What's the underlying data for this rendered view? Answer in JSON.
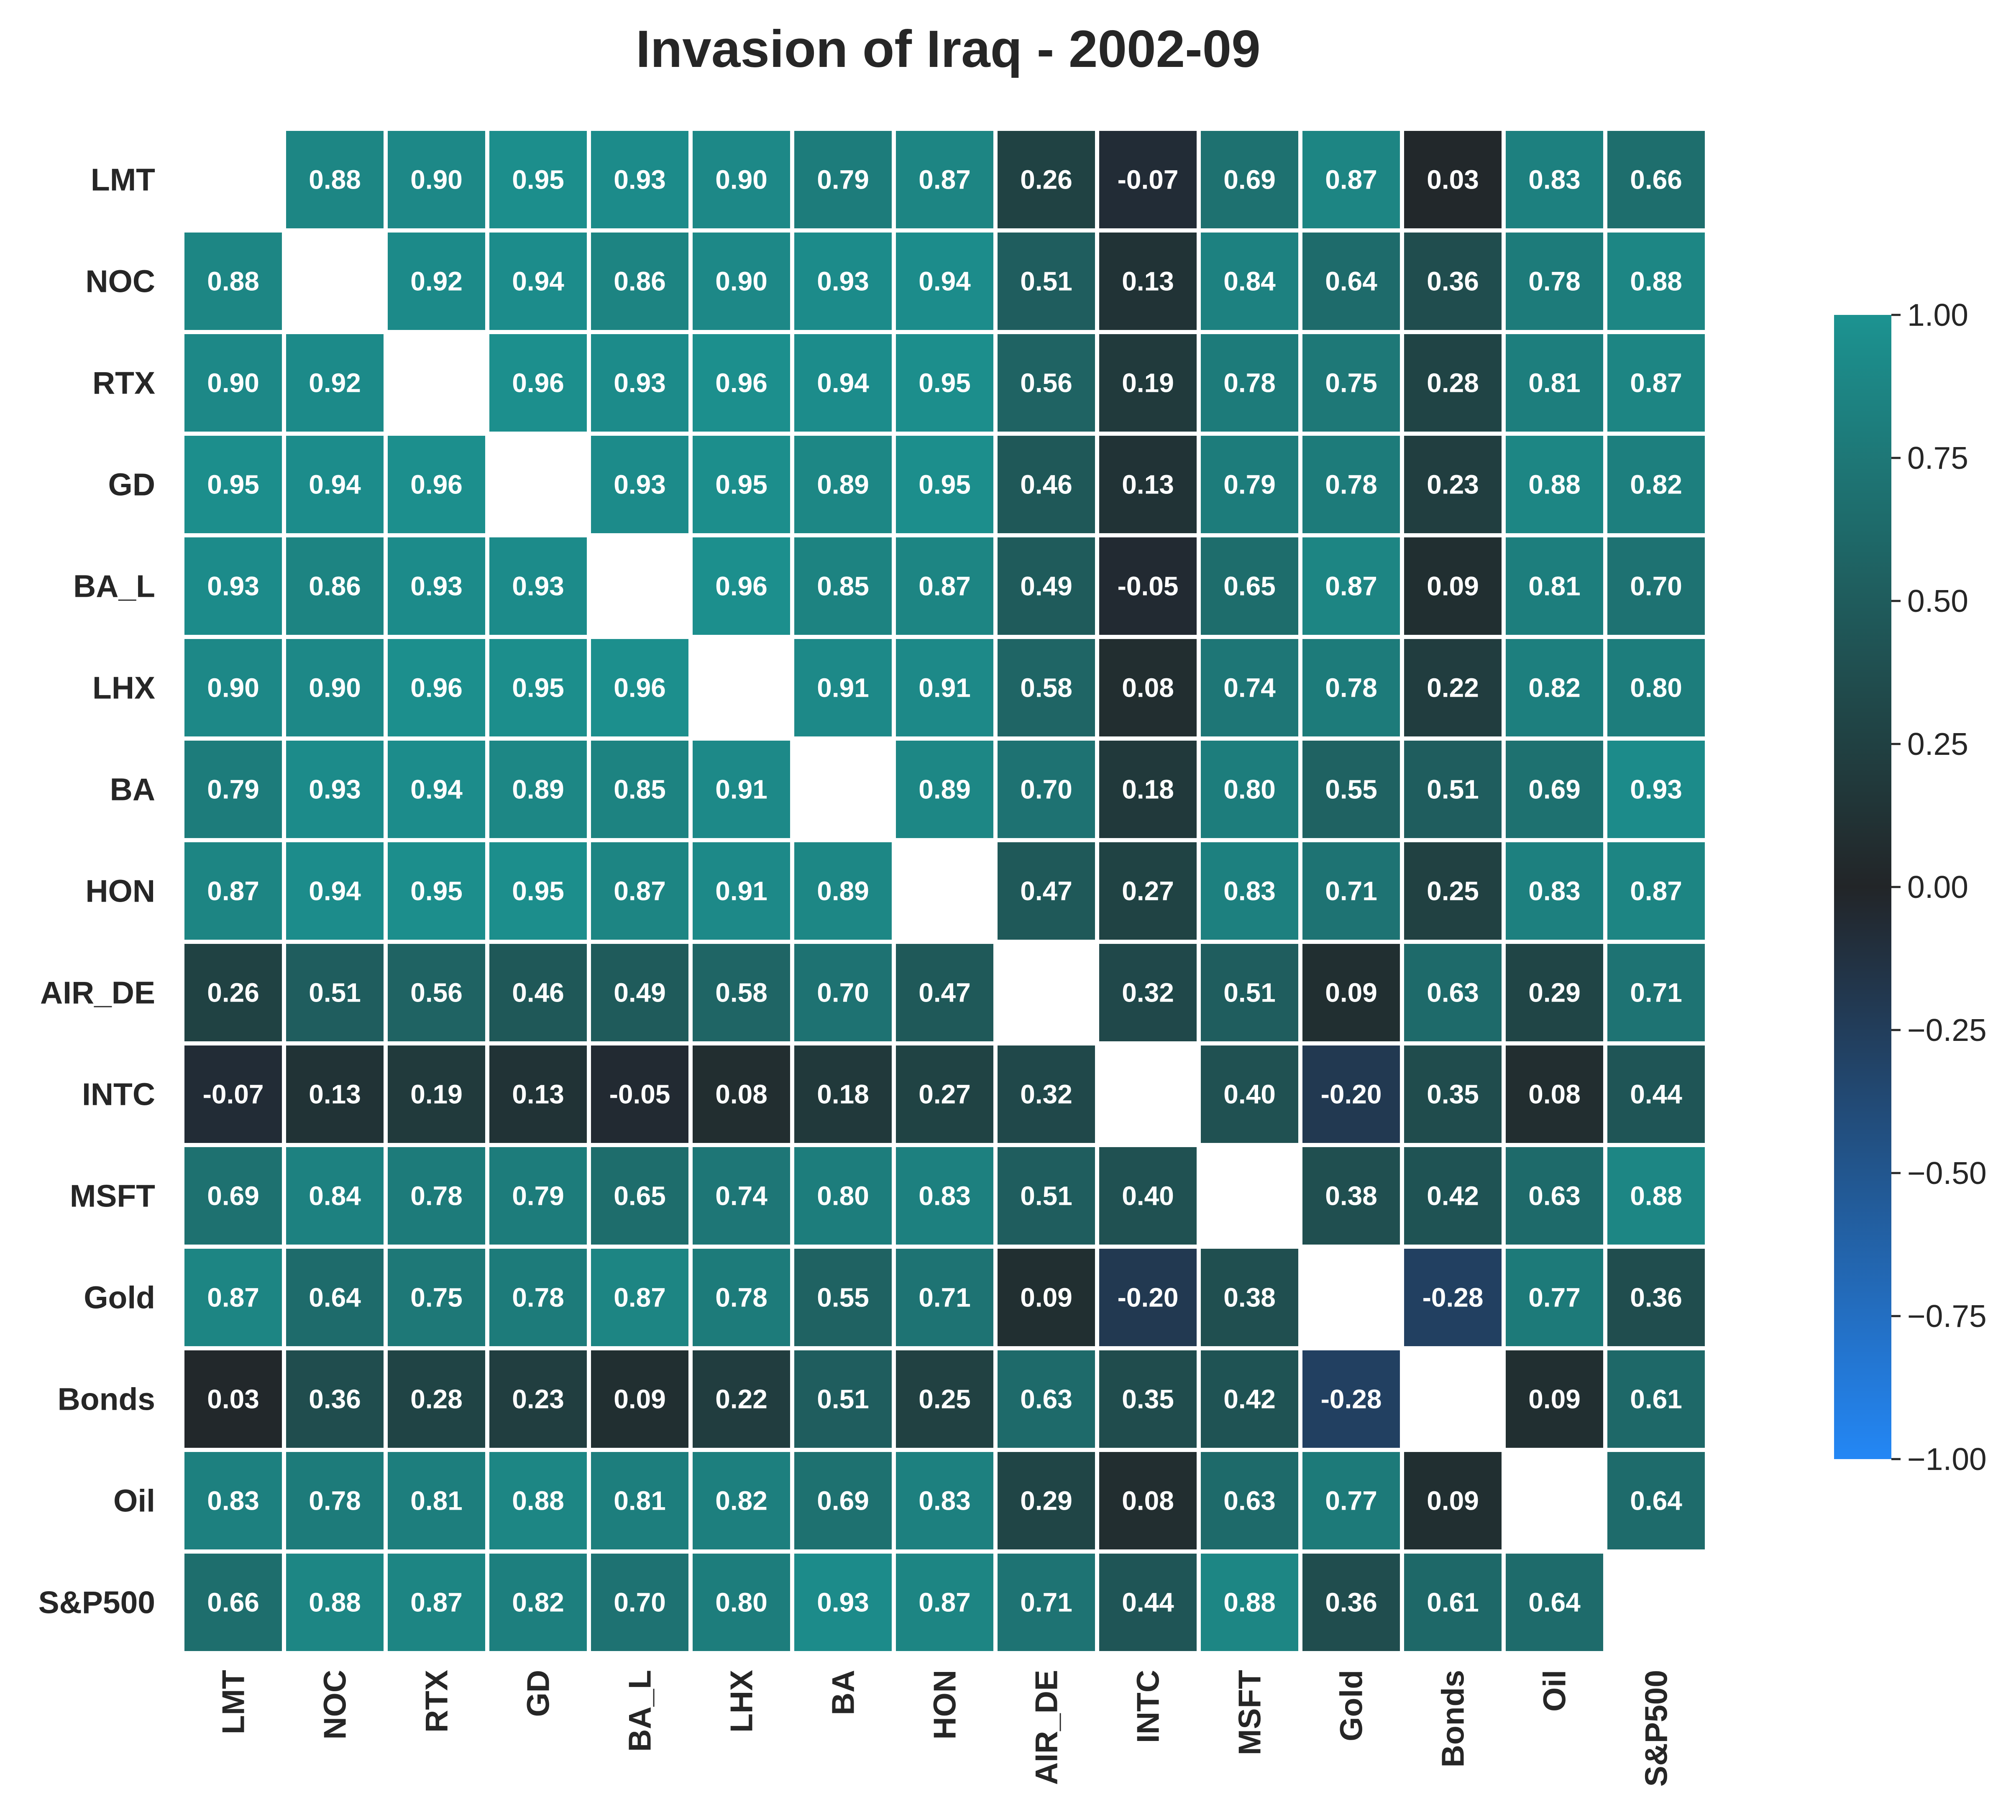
{
  "chart_data": {
    "type": "heatmap",
    "title": "Invasion of Iraq - 2002-09",
    "labels": [
      "LMT",
      "NOC",
      "RTX",
      "GD",
      "BA_L",
      "LHX",
      "BA",
      "HON",
      "AIR_DE",
      "INTC",
      "MSFT",
      "Gold",
      "Bonds",
      "Oil",
      "S&P500"
    ],
    "matrix": [
      [
        null,
        0.88,
        0.9,
        0.95,
        0.93,
        0.9,
        0.79,
        0.87,
        0.26,
        -0.07,
        0.69,
        0.87,
        0.03,
        0.83,
        0.66
      ],
      [
        0.88,
        null,
        0.92,
        0.94,
        0.86,
        0.9,
        0.93,
        0.94,
        0.51,
        0.13,
        0.84,
        0.64,
        0.36,
        0.78,
        0.88
      ],
      [
        0.9,
        0.92,
        null,
        0.96,
        0.93,
        0.96,
        0.94,
        0.95,
        0.56,
        0.19,
        0.78,
        0.75,
        0.28,
        0.81,
        0.87
      ],
      [
        0.95,
        0.94,
        0.96,
        null,
        0.93,
        0.95,
        0.89,
        0.95,
        0.46,
        0.13,
        0.79,
        0.78,
        0.23,
        0.88,
        0.82
      ],
      [
        0.93,
        0.86,
        0.93,
        0.93,
        null,
        0.96,
        0.85,
        0.87,
        0.49,
        -0.05,
        0.65,
        0.87,
        0.09,
        0.81,
        0.7
      ],
      [
        0.9,
        0.9,
        0.96,
        0.95,
        0.96,
        null,
        0.91,
        0.91,
        0.58,
        0.08,
        0.74,
        0.78,
        0.22,
        0.82,
        0.8
      ],
      [
        0.79,
        0.93,
        0.94,
        0.89,
        0.85,
        0.91,
        null,
        0.89,
        0.7,
        0.18,
        0.8,
        0.55,
        0.51,
        0.69,
        0.93
      ],
      [
        0.87,
        0.94,
        0.95,
        0.95,
        0.87,
        0.91,
        0.89,
        null,
        0.47,
        0.27,
        0.83,
        0.71,
        0.25,
        0.83,
        0.87
      ],
      [
        0.26,
        0.51,
        0.56,
        0.46,
        0.49,
        0.58,
        0.7,
        0.47,
        null,
        0.32,
        0.51,
        0.09,
        0.63,
        0.29,
        0.71
      ],
      [
        -0.07,
        0.13,
        0.19,
        0.13,
        -0.05,
        0.08,
        0.18,
        0.27,
        0.32,
        null,
        0.4,
        -0.2,
        0.35,
        0.08,
        0.44
      ],
      [
        0.69,
        0.84,
        0.78,
        0.79,
        0.65,
        0.74,
        0.8,
        0.83,
        0.51,
        0.4,
        null,
        0.38,
        0.42,
        0.63,
        0.88
      ],
      [
        0.87,
        0.64,
        0.75,
        0.78,
        0.87,
        0.78,
        0.55,
        0.71,
        0.09,
        -0.2,
        0.38,
        null,
        -0.28,
        0.77,
        0.36
      ],
      [
        0.03,
        0.36,
        0.28,
        0.23,
        0.09,
        0.22,
        0.51,
        0.25,
        0.63,
        0.35,
        0.42,
        -0.28,
        null,
        0.09,
        0.61
      ],
      [
        0.83,
        0.78,
        0.81,
        0.88,
        0.81,
        0.82,
        0.69,
        0.83,
        0.29,
        0.08,
        0.63,
        0.77,
        0.09,
        null,
        0.64
      ],
      [
        0.66,
        0.88,
        0.87,
        0.82,
        0.7,
        0.8,
        0.93,
        0.87,
        0.71,
        0.44,
        0.88,
        0.36,
        0.61,
        0.64,
        null
      ]
    ],
    "colorbar": {
      "range": [
        -1.0,
        1.0
      ],
      "ticks": [
        1.0,
        0.75,
        0.5,
        0.25,
        0.0,
        -0.25,
        -0.5,
        -0.75,
        -1.0
      ],
      "tick_labels": [
        "1.00",
        "0.75",
        "0.50",
        "0.25",
        "0.00",
        "−0.25",
        "−0.50",
        "−0.75",
        "−1.00"
      ],
      "colors": {
        "min": "#2387f5",
        "mid": "#222528",
        "max": "#1c9391"
      }
    },
    "cell_border_color": "#ffffff",
    "grid": false
  }
}
